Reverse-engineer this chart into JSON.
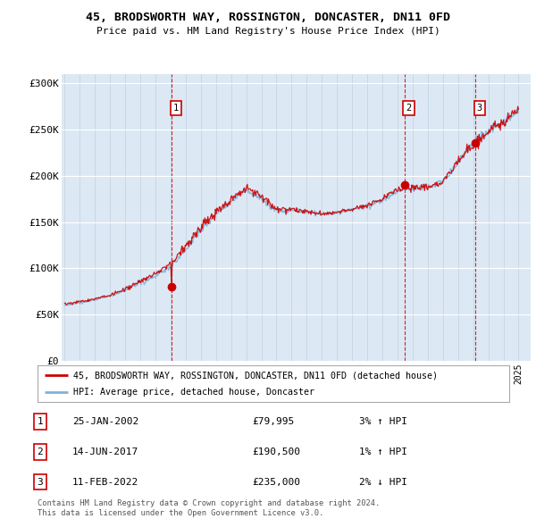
{
  "title": "45, BRODSWORTH WAY, ROSSINGTON, DONCASTER, DN11 0FD",
  "subtitle": "Price paid vs. HM Land Registry's House Price Index (HPI)",
  "ylim": [
    0,
    310000
  ],
  "yticks": [
    0,
    50000,
    100000,
    150000,
    200000,
    250000,
    300000
  ],
  "ytick_labels": [
    "£0",
    "£50K",
    "£100K",
    "£150K",
    "£200K",
    "£250K",
    "£300K"
  ],
  "bg_color": "#dce9f5",
  "line_color_hpi": "#7fb3d9",
  "line_color_price": "#cc0000",
  "sale_points": [
    {
      "year": 2002.07,
      "price": 79995,
      "label": "1"
    },
    {
      "year": 2017.45,
      "price": 190500,
      "label": "2"
    },
    {
      "year": 2022.12,
      "price": 235000,
      "label": "3"
    }
  ],
  "legend_label_price": "45, BRODSWORTH WAY, ROSSINGTON, DONCASTER, DN11 0FD (detached house)",
  "legend_label_hpi": "HPI: Average price, detached house, Doncaster",
  "table_rows": [
    {
      "num": "1",
      "date": "25-JAN-2002",
      "price": "£79,995",
      "hpi": "3% ↑ HPI"
    },
    {
      "num": "2",
      "date": "14-JUN-2017",
      "price": "£190,500",
      "hpi": "1% ↑ HPI"
    },
    {
      "num": "3",
      "date": "11-FEB-2022",
      "price": "£235,000",
      "hpi": "2% ↓ HPI"
    }
  ],
  "footer": "Contains HM Land Registry data © Crown copyright and database right 2024.\nThis data is licensed under the Open Government Licence v3.0.",
  "hpi_anchor_years": [
    1995,
    1996,
    1997,
    1998,
    1999,
    2000,
    2001,
    2002,
    2003,
    2004,
    2005,
    2006,
    2007,
    2008,
    2009,
    2010,
    2011,
    2012,
    2013,
    2014,
    2015,
    2016,
    2017,
    2018,
    2019,
    2020,
    2021,
    2022,
    2023,
    2024,
    2025
  ],
  "hpi_anchor_values": [
    60000,
    63000,
    66000,
    70000,
    76000,
    84000,
    92000,
    102000,
    120000,
    142000,
    158000,
    172000,
    185000,
    175000,
    162000,
    163000,
    161000,
    158000,
    160000,
    163000,
    167000,
    173000,
    183000,
    186000,
    188000,
    193000,
    215000,
    235000,
    248000,
    258000,
    270000
  ]
}
